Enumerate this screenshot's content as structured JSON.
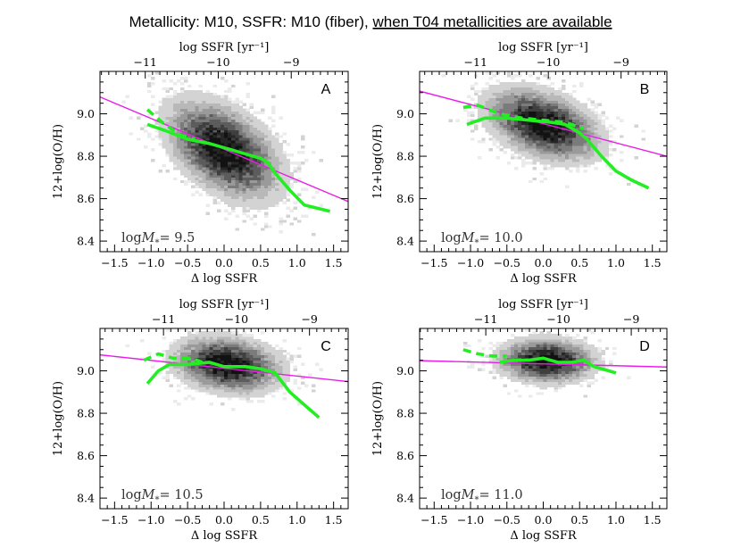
{
  "figure": {
    "title_main": "Metallicity: M10,   SSFR: M10 (fiber),   ",
    "title_underlined": "when T04 metallicities are available"
  },
  "chart_data": [
    {
      "type": "scatter",
      "panel_label": "A",
      "mass_label_prefix": "log",
      "mass_label_symbol": "M",
      "mass_label_sub": "*",
      "mass_label_value": "= 9.5",
      "xlabel": "Δ log SSFR",
      "ylabel": "12+log(O/H)",
      "top_axis_label": "log SSFR [yr⁻¹]",
      "xlim": [
        -1.7,
        1.7
      ],
      "ylim": [
        8.35,
        9.2
      ],
      "xticks": [
        -1.5,
        -1.0,
        -0.5,
        0.0,
        0.5,
        1.0,
        1.5
      ],
      "xtick_labels": [
        "−1.5",
        "−1.0",
        "−0.5",
        "0.0",
        "0.5",
        "1.0",
        "1.5"
      ],
      "yticks": [
        8.4,
        8.6,
        8.8,
        9.0
      ],
      "ytick_labels": [
        "8.4",
        "8.6",
        "8.8",
        "9.0"
      ],
      "top_ticks": [
        {
          "x": -1.08,
          "label": "−11"
        },
        {
          "x": -0.08,
          "label": "−10"
        },
        {
          "x": 0.92,
          "label": "−9"
        }
      ],
      "density": {
        "center": [
          0.0,
          8.83
        ],
        "spread": [
          0.45,
          0.12
        ],
        "slope": -0.14,
        "threshold": 0.12
      },
      "fit_line": {
        "slope": -0.145,
        "intercept": 8.833
      },
      "series": [
        {
          "style": "solid",
          "x": [
            -1.05,
            -0.8,
            -0.5,
            -0.2,
            0.1,
            0.3,
            0.5,
            0.6,
            0.7,
            0.9,
            1.1,
            1.45
          ],
          "y": [
            8.95,
            8.92,
            8.88,
            8.86,
            8.83,
            8.81,
            8.79,
            8.77,
            8.72,
            8.64,
            8.57,
            8.54
          ]
        },
        {
          "style": "dashed",
          "x": [
            -1.05,
            -0.85,
            -0.6,
            -0.4
          ],
          "y": [
            9.02,
            8.96,
            8.9,
            8.88
          ]
        }
      ]
    },
    {
      "type": "scatter",
      "panel_label": "B",
      "mass_label_prefix": "log",
      "mass_label_symbol": "M",
      "mass_label_sub": "*",
      "mass_label_value": "= 10.0",
      "xlabel": "Δ log SSFR",
      "ylabel": "12+log(O/H)",
      "top_axis_label": "log SSFR [yr⁻¹]",
      "xlim": [
        -1.7,
        1.7
      ],
      "ylim": [
        8.35,
        9.2
      ],
      "xticks": [
        -1.5,
        -1.0,
        -0.5,
        0.0,
        0.5,
        1.0,
        1.5
      ],
      "xtick_labels": [
        "−1.5",
        "−1.0",
        "−0.5",
        "0.0",
        "0.5",
        "1.0",
        "1.5"
      ],
      "yticks": [
        8.4,
        8.6,
        8.8,
        9.0
      ],
      "ytick_labels": [
        "8.4",
        "8.6",
        "8.8",
        "9.0"
      ],
      "top_ticks": [
        {
          "x": -0.93,
          "label": "−11"
        },
        {
          "x": 0.07,
          "label": "−10"
        },
        {
          "x": 1.07,
          "label": "−9"
        }
      ],
      "density": {
        "center": [
          0.0,
          8.95
        ],
        "spread": [
          0.45,
          0.09
        ],
        "slope": -0.09,
        "threshold": 0.12
      },
      "fit_line": {
        "slope": -0.0903,
        "intercept": 8.9535
      },
      "series": [
        {
          "style": "solid",
          "x": [
            -1.05,
            -0.8,
            -0.5,
            -0.2,
            0.1,
            0.3,
            0.5,
            0.6,
            0.8,
            1.0,
            1.2,
            1.45
          ],
          "y": [
            8.95,
            8.98,
            8.98,
            8.97,
            8.96,
            8.95,
            8.91,
            8.88,
            8.8,
            8.73,
            8.69,
            8.65
          ]
        },
        {
          "style": "dashed",
          "x": [
            -1.1,
            -0.9,
            -0.6,
            -0.3,
            0.0,
            0.3,
            0.55
          ],
          "y": [
            9.03,
            9.04,
            9.0,
            8.98,
            8.97,
            8.96,
            8.93
          ]
        }
      ]
    },
    {
      "type": "scatter",
      "panel_label": "C",
      "mass_label_prefix": "log",
      "mass_label_symbol": "M",
      "mass_label_sub": "*",
      "mass_label_value": "= 10.5",
      "xlabel": "Δ log SSFR",
      "ylabel": "12+log(O/H)",
      "top_axis_label": "log SSFR [yr⁻¹]",
      "xlim": [
        -1.7,
        1.7
      ],
      "ylim": [
        8.35,
        9.2
      ],
      "xticks": [
        -1.5,
        -1.0,
        -0.5,
        0.0,
        0.5,
        1.0,
        1.5
      ],
      "xtick_labels": [
        "−1.5",
        "−1.0",
        "−0.5",
        "0.0",
        "0.5",
        "1.0",
        "1.5"
      ],
      "yticks": [
        8.4,
        8.6,
        8.8,
        9.0
      ],
      "ytick_labels": [
        "8.4",
        "8.6",
        "8.8",
        "9.0"
      ],
      "top_ticks": [
        {
          "x": -0.83,
          "label": "−11"
        },
        {
          "x": 0.17,
          "label": "−10"
        },
        {
          "x": 1.17,
          "label": "−9"
        }
      ],
      "density": {
        "center": [
          0.05,
          9.03
        ],
        "spread": [
          0.42,
          0.075
        ],
        "slope": -0.035,
        "threshold": 0.12
      },
      "fit_line": {
        "slope": -0.0371,
        "intercept": 9.0123
      },
      "series": [
        {
          "style": "solid",
          "x": [
            -1.05,
            -0.9,
            -0.75,
            -0.5,
            -0.2,
            0.0,
            0.3,
            0.5,
            0.7,
            0.9,
            1.1,
            1.3
          ],
          "y": [
            8.94,
            9.0,
            9.03,
            9.03,
            9.04,
            9.02,
            9.02,
            9.01,
            8.99,
            8.9,
            8.84,
            8.78
          ]
        },
        {
          "style": "dashed",
          "x": [
            -1.1,
            -0.9,
            -0.7,
            -0.45,
            -0.3
          ],
          "y": [
            9.05,
            9.08,
            9.06,
            9.06,
            9.04
          ]
        }
      ]
    },
    {
      "type": "scatter",
      "panel_label": "D",
      "mass_label_prefix": "log",
      "mass_label_symbol": "M",
      "mass_label_sub": "*",
      "mass_label_value": "= 11.0",
      "xlabel": "Δ log SSFR",
      "ylabel": "12+log(O/H)",
      "top_axis_label": "log SSFR [yr⁻¹]",
      "xlim": [
        -1.7,
        1.7
      ],
      "ylim": [
        8.35,
        9.2
      ],
      "xticks": [
        -1.5,
        -1.0,
        -0.5,
        0.0,
        0.5,
        1.0,
        1.5
      ],
      "xtick_labels": [
        "−1.5",
        "−1.0",
        "−0.5",
        "0.0",
        "0.5",
        "1.0",
        "1.5"
      ],
      "yticks": [
        8.4,
        8.6,
        8.8,
        9.0
      ],
      "ytick_labels": [
        "8.4",
        "8.6",
        "8.8",
        "9.0"
      ],
      "top_ticks": [
        {
          "x": -0.79,
          "label": "−11"
        },
        {
          "x": 0.21,
          "label": "−10"
        },
        {
          "x": 1.21,
          "label": "−9"
        }
      ],
      "density": {
        "center": [
          0.05,
          9.05
        ],
        "spread": [
          0.38,
          0.06
        ],
        "slope": -0.008,
        "threshold": 0.12
      },
      "fit_line": {
        "slope": -0.0088,
        "intercept": 9.033
      },
      "series": [
        {
          "style": "solid",
          "x": [
            -0.6,
            -0.4,
            -0.2,
            0.0,
            0.2,
            0.4,
            0.55,
            0.7,
            1.0
          ],
          "y": [
            9.04,
            9.05,
            9.05,
            9.06,
            9.04,
            9.04,
            9.05,
            9.02,
            8.99
          ]
        },
        {
          "style": "dashed",
          "x": [
            -1.1,
            -0.9,
            -0.7,
            -0.5
          ],
          "y": [
            9.1,
            9.08,
            9.07,
            9.07
          ]
        }
      ]
    }
  ]
}
